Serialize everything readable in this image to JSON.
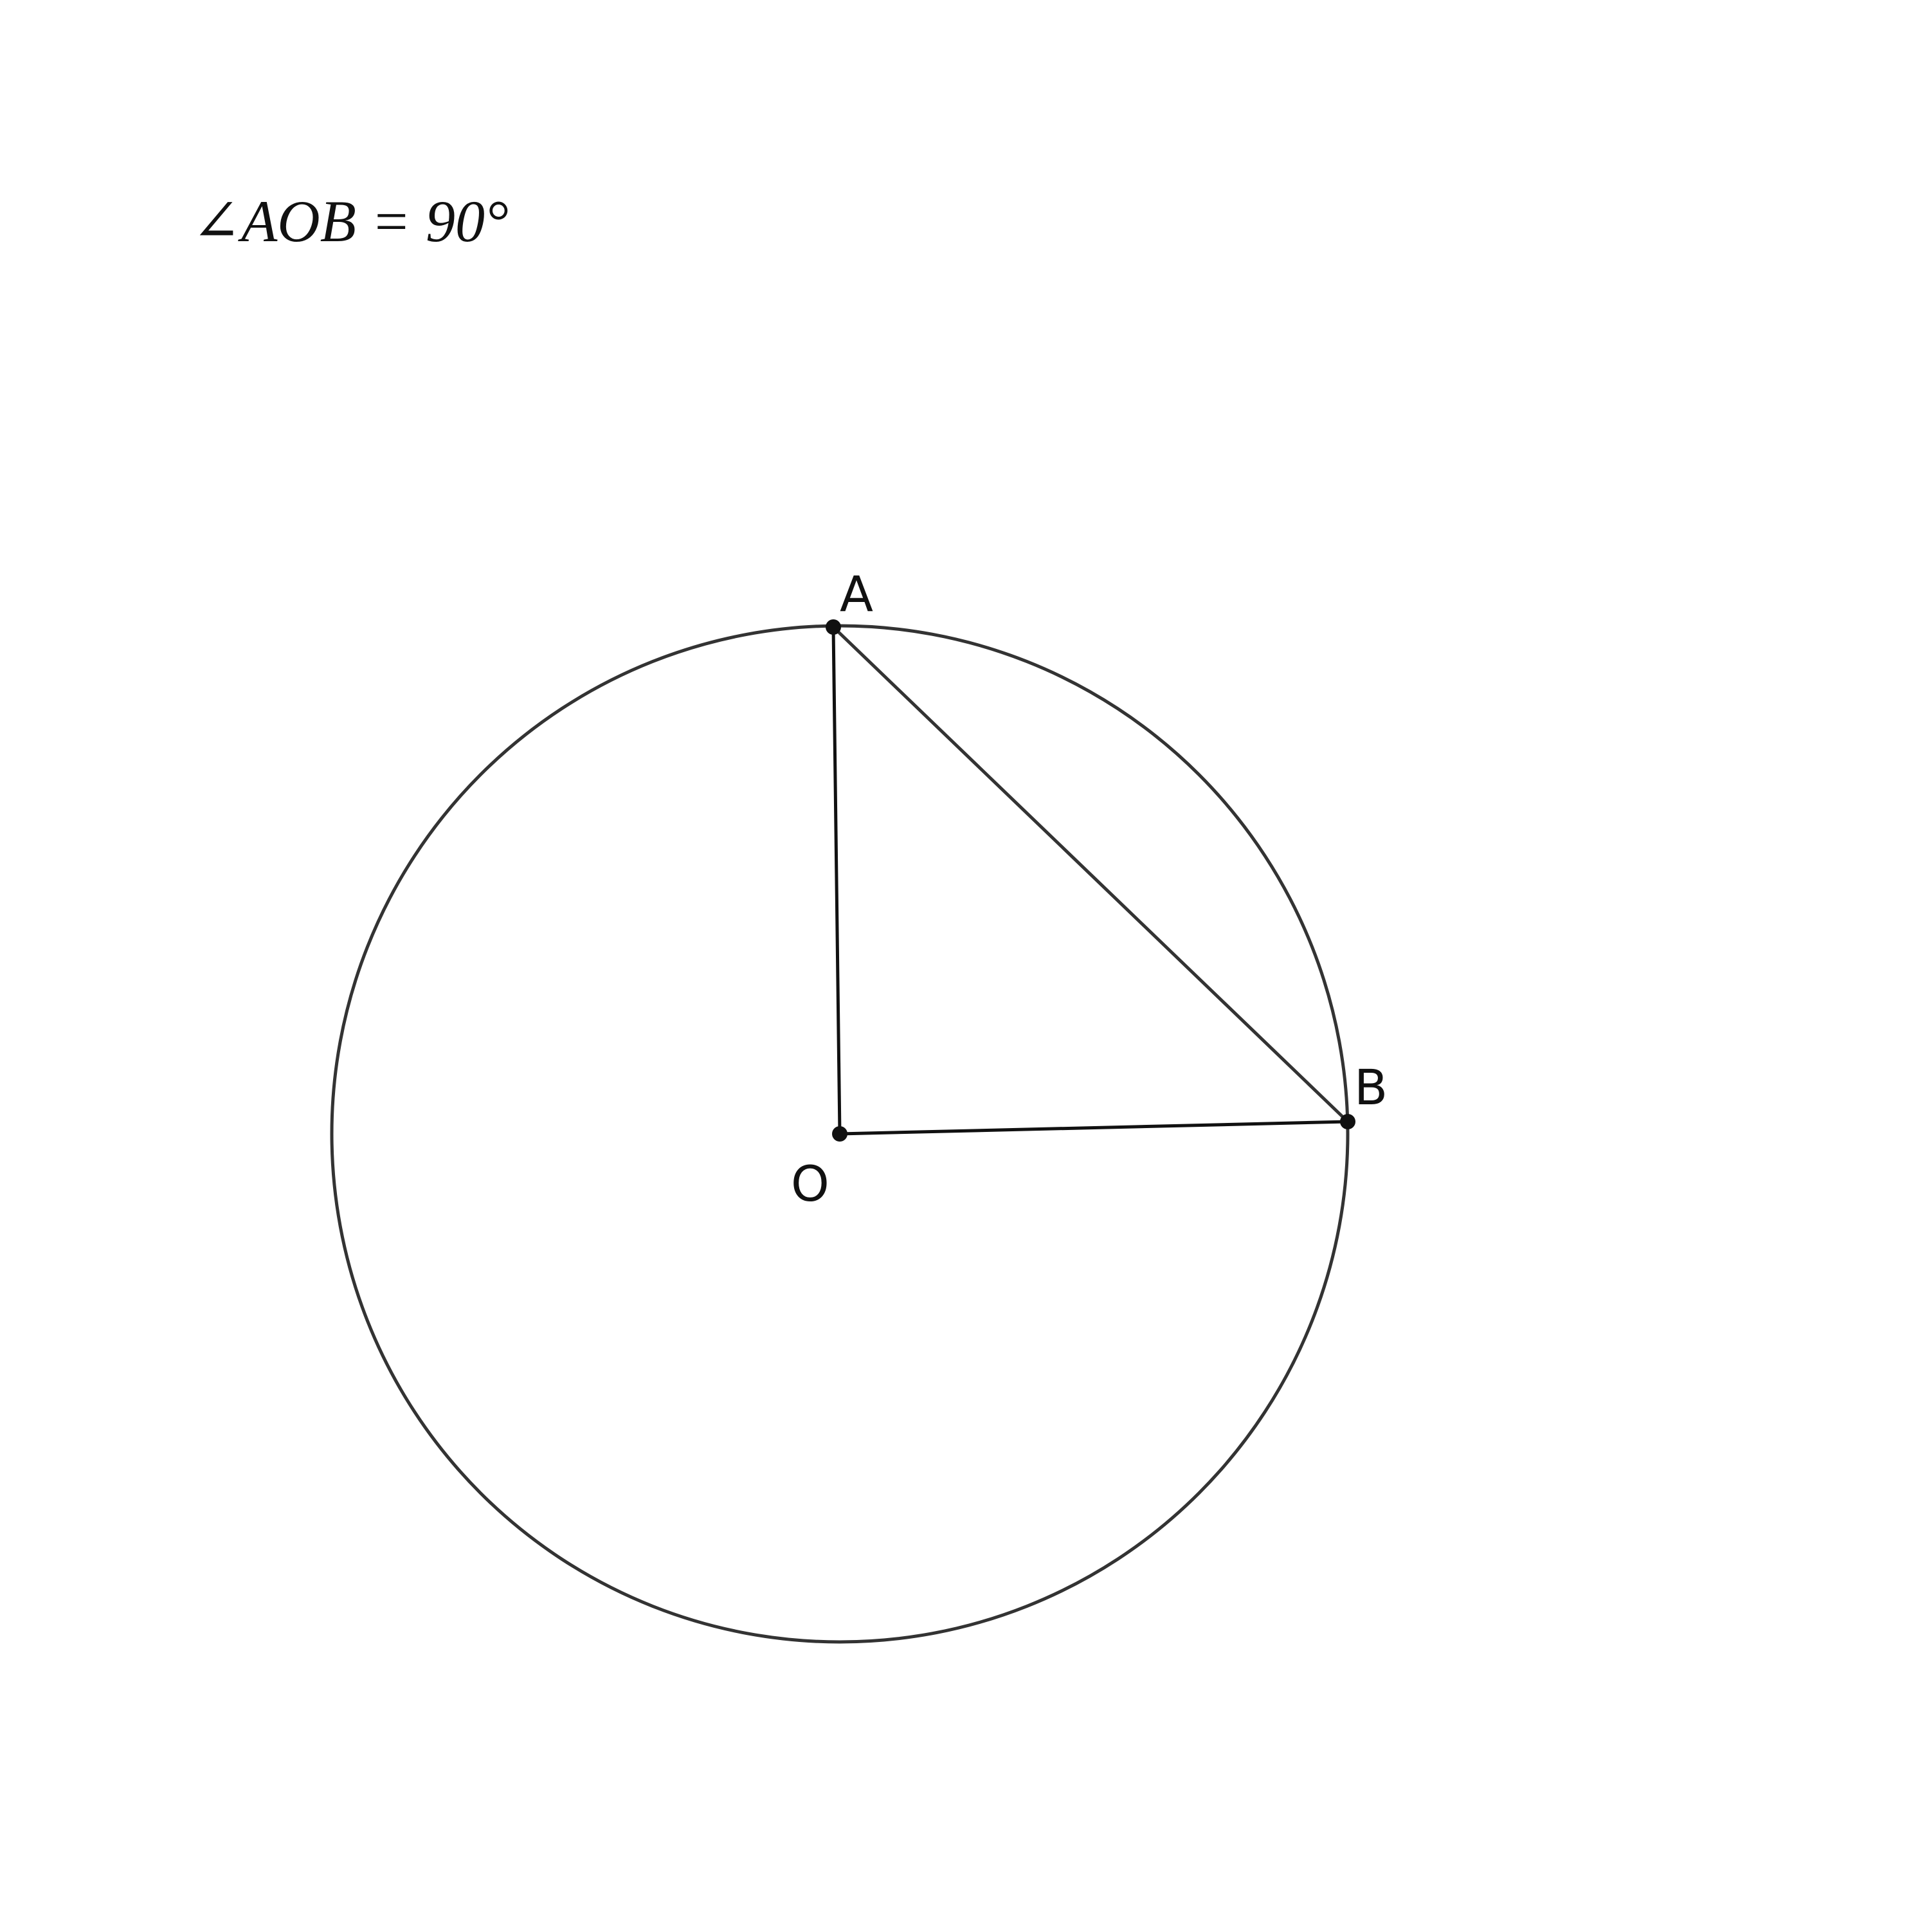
{
  "annotation": "∠AOB = 90°",
  "points": [
    {
      "label": "A"
    },
    {
      "label": "B"
    },
    {
      "label": "O"
    }
  ]
}
